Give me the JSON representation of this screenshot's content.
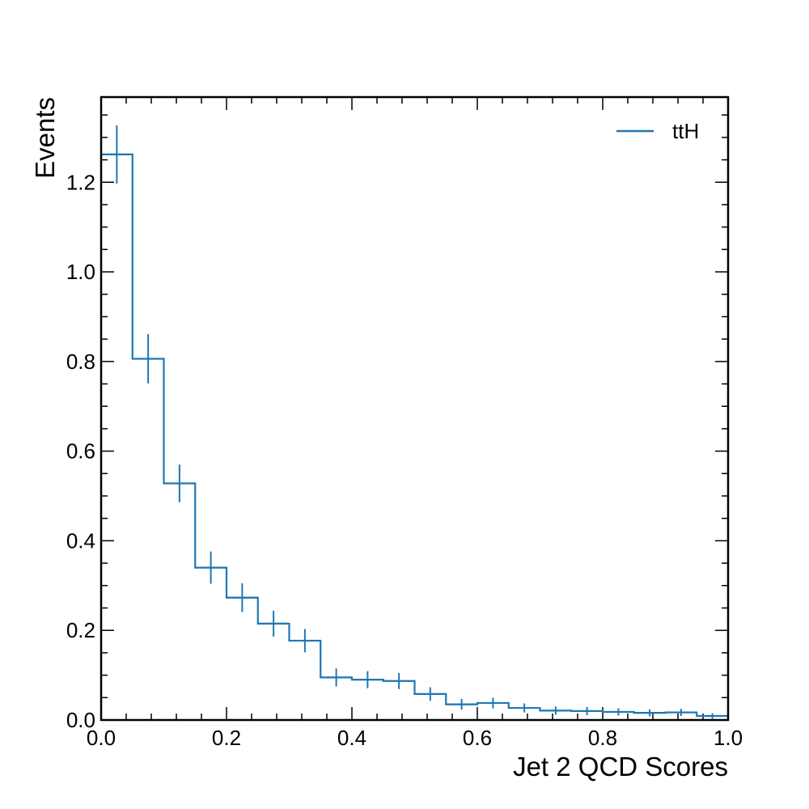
{
  "chart_data": {
    "type": "histogram-step",
    "title": "",
    "xlabel": "Jet 2 QCD Scores",
    "ylabel": "Events",
    "xlim": [
      0.0,
      1.0
    ],
    "ylim": [
      0.0,
      1.39
    ],
    "x_ticks": [
      0.0,
      0.2,
      0.4,
      0.6,
      0.8,
      1.0
    ],
    "x_tick_labels": [
      "0.0",
      "0.2",
      "0.4",
      "0.6",
      "0.8",
      "1.0"
    ],
    "y_ticks": [
      0.0,
      0.2,
      0.4,
      0.6,
      0.8,
      1.0,
      1.2
    ],
    "y_tick_labels": [
      "0.0",
      "0.2",
      "0.4",
      "0.6",
      "0.8",
      "1.0",
      "1.2"
    ],
    "grid": false,
    "legend_position": "top-right",
    "bin_edges": [
      0.0,
      0.05,
      0.1,
      0.15,
      0.2,
      0.25,
      0.3,
      0.35,
      0.4,
      0.45,
      0.5,
      0.55,
      0.6,
      0.65,
      0.7,
      0.75,
      0.8,
      0.85,
      0.9,
      0.95,
      1.0
    ],
    "series": [
      {
        "name": "ttH",
        "color": "#1f77b4",
        "values": [
          1.262,
          0.806,
          0.528,
          0.34,
          0.273,
          0.215,
          0.177,
          0.095,
          0.09,
          0.087,
          0.058,
          0.035,
          0.038,
          0.027,
          0.021,
          0.02,
          0.018,
          0.016,
          0.017,
          0.009
        ],
        "errors": [
          0.065,
          0.055,
          0.042,
          0.036,
          0.032,
          0.029,
          0.026,
          0.02,
          0.019,
          0.018,
          0.015,
          0.012,
          0.012,
          0.01,
          0.009,
          0.009,
          0.008,
          0.008,
          0.008,
          0.006
        ]
      }
    ]
  }
}
